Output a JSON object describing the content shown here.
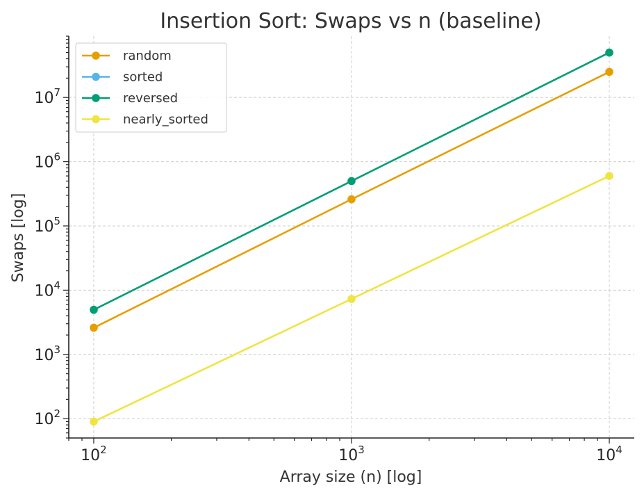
{
  "chart_data": {
    "type": "line",
    "title": "Insertion Sort: Swaps vs n (baseline)",
    "xlabel": "Array size (n) [log]",
    "ylabel": "Swaps [log]",
    "xscale": "log",
    "yscale": "log",
    "x": [
      100,
      1000,
      10000
    ],
    "xlim": [
      80,
      12500
    ],
    "ylim": [
      50,
      90000000
    ],
    "x_ticks": [
      {
        "value": 100,
        "base": "10",
        "exp": "2"
      },
      {
        "value": 1000,
        "base": "10",
        "exp": "3"
      },
      {
        "value": 10000,
        "base": "10",
        "exp": "4"
      }
    ],
    "y_ticks": [
      {
        "value": 100,
        "base": "10",
        "exp": "2"
      },
      {
        "value": 1000,
        "base": "10",
        "exp": "3"
      },
      {
        "value": 10000,
        "base": "10",
        "exp": "4"
      },
      {
        "value": 100000,
        "base": "10",
        "exp": "5"
      },
      {
        "value": 1000000,
        "base": "10",
        "exp": "6"
      },
      {
        "value": 10000000,
        "base": "10",
        "exp": "7"
      }
    ],
    "grid": true,
    "legend_position": "top-left",
    "series": [
      {
        "name": "random",
        "color": "#E69F00",
        "values": [
          2600,
          260000,
          25000000
        ]
      },
      {
        "name": "sorted",
        "color": "#56B4E9",
        "values": [
          0,
          0,
          0
        ]
      },
      {
        "name": "reversed",
        "color": "#009E73",
        "values": [
          4950,
          499500,
          49995000
        ]
      },
      {
        "name": "nearly_sorted",
        "color": "#F0E442",
        "values": [
          90,
          7300,
          600000
        ]
      }
    ]
  }
}
